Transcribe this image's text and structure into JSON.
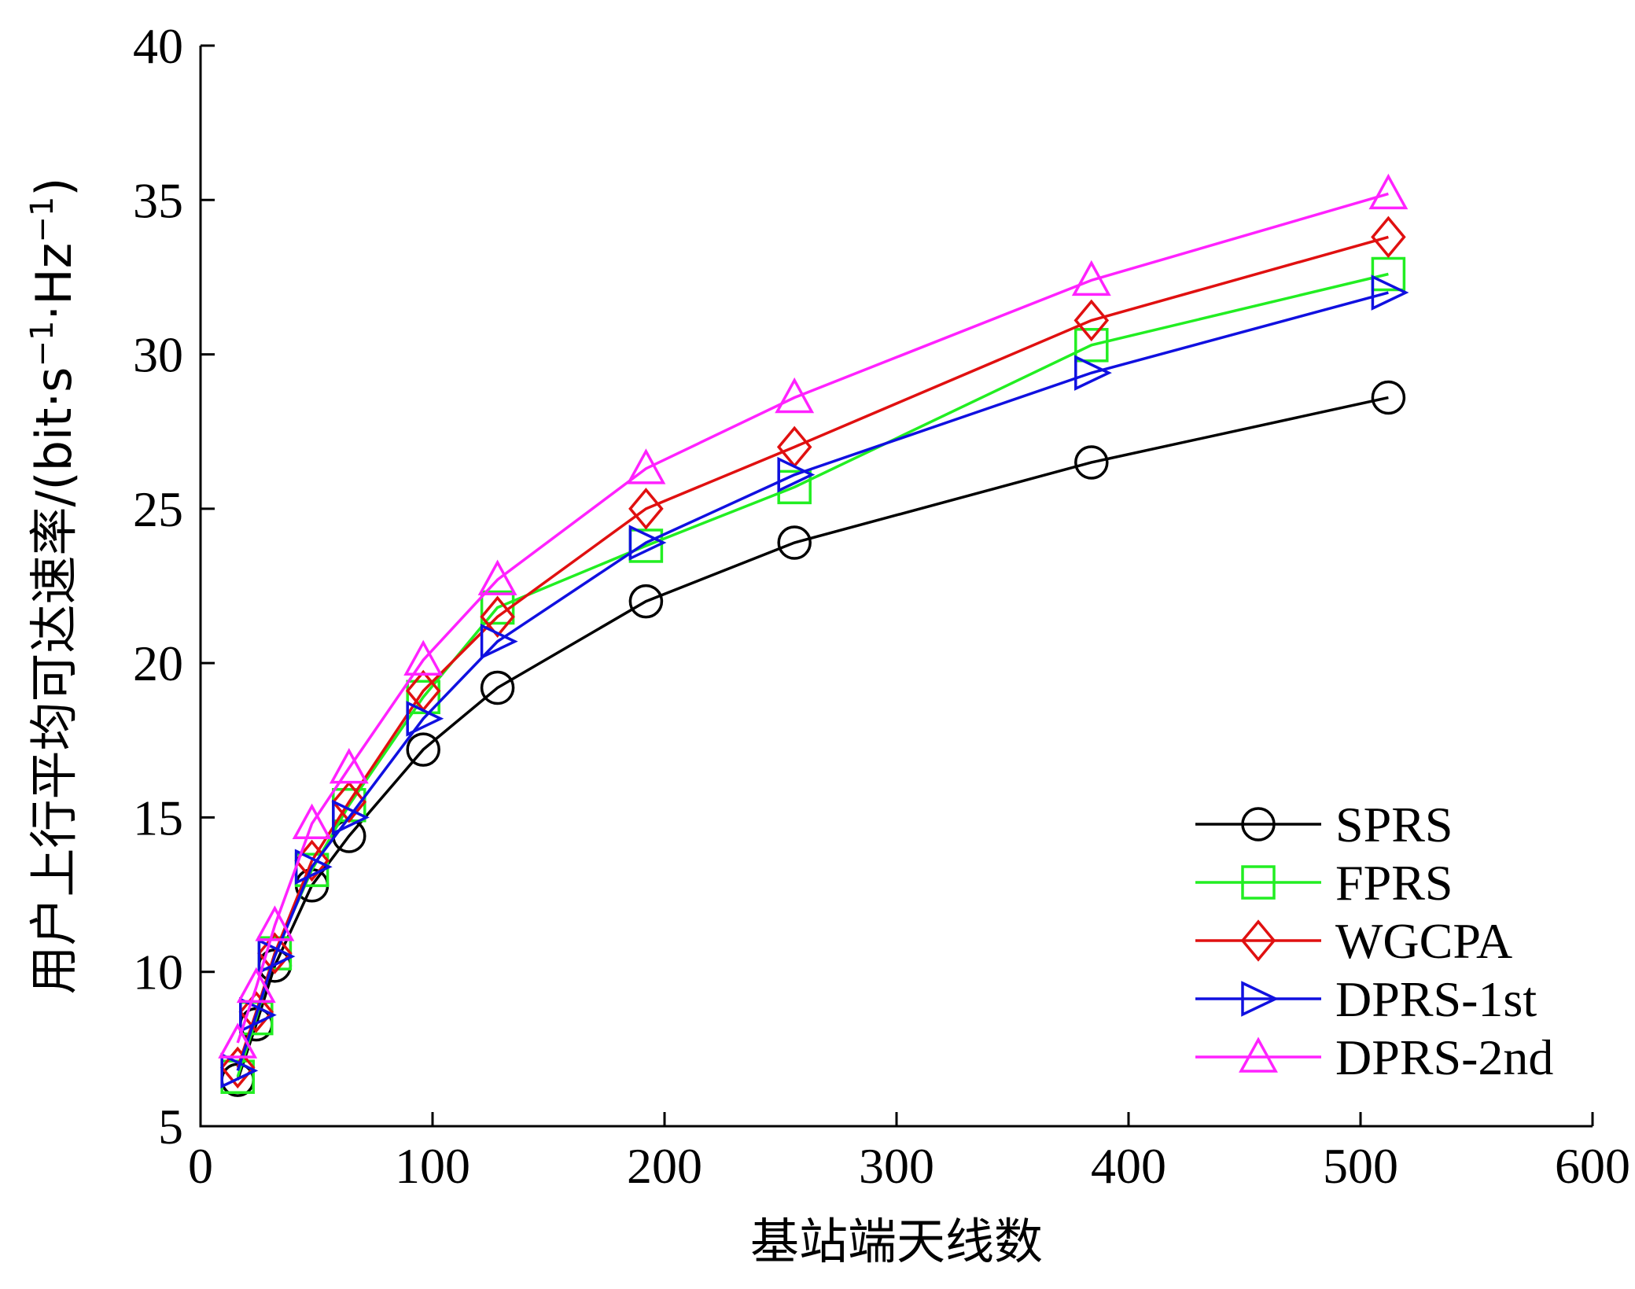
{
  "chart_data": {
    "type": "line",
    "xlabel": "基站端天线数",
    "ylabel": "用户上行平均可达速率/(bit·s−1·Hz−1)",
    "ylabel_parts": {
      "main": "用户上行平均可达速率/(bit·s",
      "sup1": "−1",
      "mid": "·Hz",
      "sup2": "−1",
      "end": ")"
    },
    "xlim": [
      0,
      600
    ],
    "ylim": [
      5,
      40
    ],
    "xticks": [
      0,
      100,
      200,
      300,
      400,
      500,
      600
    ],
    "yticks": [
      5,
      10,
      15,
      20,
      25,
      30,
      35,
      40
    ],
    "grid": false,
    "legend_position": "bottom-right",
    "x": [
      16,
      24,
      32,
      48,
      64,
      96,
      128,
      192,
      256,
      384,
      512
    ],
    "series": [
      {
        "name": "SPRS",
        "color": "#000000",
        "marker": "circle",
        "values": [
          6.5,
          8.3,
          10.2,
          12.8,
          14.4,
          17.2,
          19.2,
          22.0,
          23.9,
          26.5,
          28.6
        ]
      },
      {
        "name": "FPRS",
        "color": "#22ee22",
        "marker": "square",
        "values": [
          6.6,
          8.5,
          10.6,
          13.3,
          15.4,
          18.9,
          21.8,
          23.8,
          25.7,
          30.3,
          32.6
        ]
      },
      {
        "name": "WGCPA",
        "color": "#e01010",
        "marker": "diamond",
        "values": [
          6.9,
          8.7,
          10.6,
          13.6,
          15.5,
          19.1,
          21.5,
          25.0,
          27.0,
          31.1,
          33.8
        ]
      },
      {
        "name": "DPRS-1st",
        "color": "#1010e0",
        "marker": "triangle-right",
        "values": [
          6.8,
          8.6,
          10.5,
          13.4,
          15.0,
          18.2,
          20.7,
          23.9,
          26.1,
          29.4,
          32.0
        ]
      },
      {
        "name": "DPRS-2nd",
        "color": "#ff22ff",
        "marker": "triangle-up",
        "values": [
          7.7,
          9.5,
          11.5,
          14.8,
          16.6,
          20.1,
          22.7,
          26.3,
          28.6,
          32.4,
          35.2
        ]
      }
    ]
  }
}
